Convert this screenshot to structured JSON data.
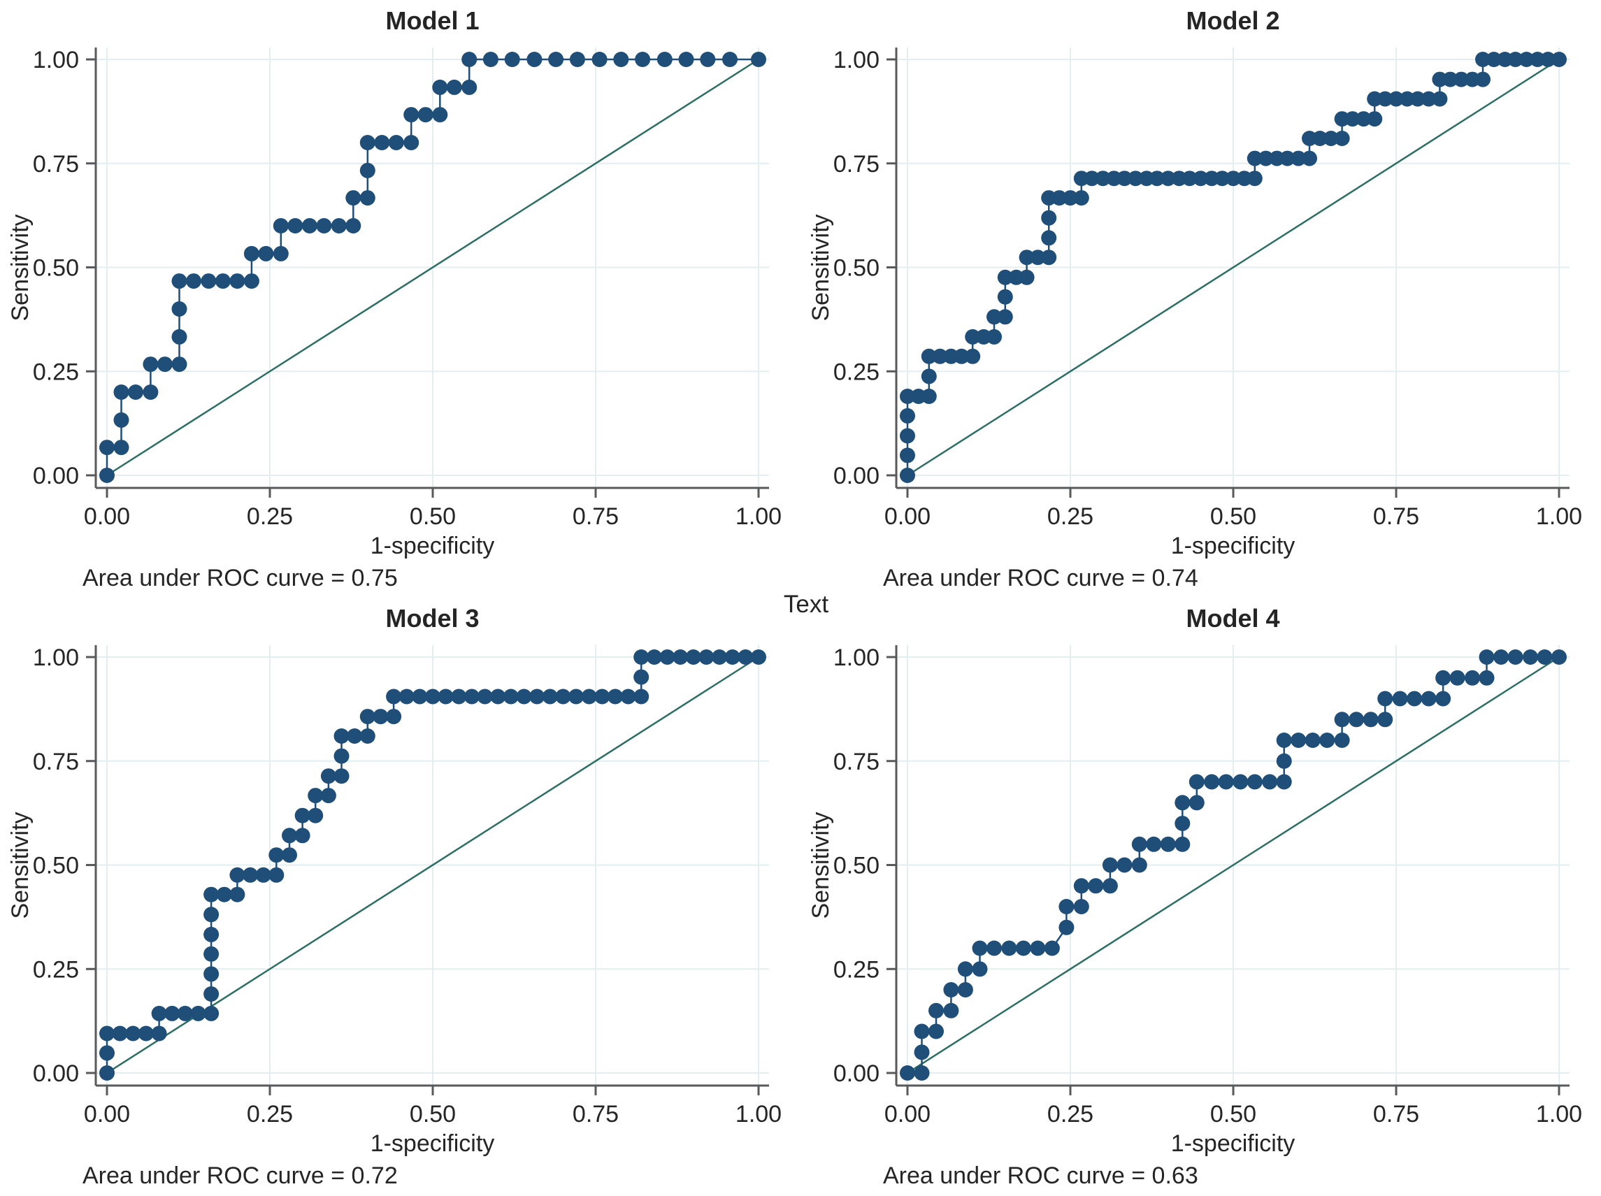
{
  "middle_label": "Text",
  "colors": {
    "curve": "#1f4e79",
    "reference_line": "#2c6e63",
    "grid": "#e3eef0",
    "axis": "#58595b",
    "text": "#252525",
    "background": "#ffffff"
  },
  "chart_data": [
    {
      "type": "line",
      "title": "Model 1",
      "xlabel": "1-specificity",
      "ylabel": "Sensitivity",
      "caption": "Area under ROC curve = 0.75",
      "auc": 0.75,
      "xlim": [
        0,
        1
      ],
      "ylim": [
        0,
        1
      ],
      "x_tick_labels": [
        "0.00",
        "0.25",
        "0.50",
        "0.75",
        "1.00"
      ],
      "y_tick_labels": [
        "0.00",
        "0.25",
        "0.50",
        "0.75",
        "1.00"
      ],
      "tick_values": [
        0,
        0.25,
        0.5,
        0.75,
        1
      ],
      "grid": true,
      "reference_line": [
        [
          0,
          0
        ],
        [
          1,
          1
        ]
      ],
      "points": [
        [
          0,
          0
        ],
        [
          0,
          0.067
        ],
        [
          0.022,
          0.067
        ],
        [
          0.022,
          0.133
        ],
        [
          0.022,
          0.2
        ],
        [
          0.044,
          0.2
        ],
        [
          0.067,
          0.2
        ],
        [
          0.067,
          0.267
        ],
        [
          0.089,
          0.267
        ],
        [
          0.111,
          0.267
        ],
        [
          0.111,
          0.333
        ],
        [
          0.111,
          0.4
        ],
        [
          0.111,
          0.467
        ],
        [
          0.133,
          0.467
        ],
        [
          0.156,
          0.467
        ],
        [
          0.178,
          0.467
        ],
        [
          0.2,
          0.467
        ],
        [
          0.222,
          0.467
        ],
        [
          0.222,
          0.533
        ],
        [
          0.244,
          0.533
        ],
        [
          0.267,
          0.533
        ],
        [
          0.267,
          0.6
        ],
        [
          0.289,
          0.6
        ],
        [
          0.311,
          0.6
        ],
        [
          0.333,
          0.6
        ],
        [
          0.356,
          0.6
        ],
        [
          0.378,
          0.6
        ],
        [
          0.378,
          0.667
        ],
        [
          0.4,
          0.667
        ],
        [
          0.4,
          0.733
        ],
        [
          0.4,
          0.8
        ],
        [
          0.422,
          0.8
        ],
        [
          0.444,
          0.8
        ],
        [
          0.467,
          0.8
        ],
        [
          0.467,
          0.867
        ],
        [
          0.489,
          0.867
        ],
        [
          0.511,
          0.867
        ],
        [
          0.511,
          0.933
        ],
        [
          0.533,
          0.933
        ],
        [
          0.556,
          0.933
        ],
        [
          0.556,
          1
        ],
        [
          0.589,
          1
        ],
        [
          0.622,
          1
        ],
        [
          0.656,
          1
        ],
        [
          0.689,
          1
        ],
        [
          0.722,
          1
        ],
        [
          0.756,
          1
        ],
        [
          0.789,
          1
        ],
        [
          0.822,
          1
        ],
        [
          0.856,
          1
        ],
        [
          0.889,
          1
        ],
        [
          0.922,
          1
        ],
        [
          0.956,
          1
        ],
        [
          1,
          1
        ]
      ]
    },
    {
      "type": "line",
      "title": "Model 2",
      "xlabel": "1-specificity",
      "ylabel": "Sensitivity",
      "caption": "Area under ROC curve = 0.74",
      "auc": 0.74,
      "xlim": [
        0,
        1
      ],
      "ylim": [
        0,
        1
      ],
      "x_tick_labels": [
        "0.00",
        "0.25",
        "0.50",
        "0.75",
        "1.00"
      ],
      "y_tick_labels": [
        "0.00",
        "0.25",
        "0.50",
        "0.75",
        "1.00"
      ],
      "tick_values": [
        0,
        0.25,
        0.5,
        0.75,
        1
      ],
      "grid": true,
      "reference_line": [
        [
          0,
          0
        ],
        [
          1,
          1
        ]
      ],
      "points": [
        [
          0,
          0
        ],
        [
          0,
          0.048
        ],
        [
          0,
          0.095
        ],
        [
          0,
          0.143
        ],
        [
          0,
          0.19
        ],
        [
          0.017,
          0.19
        ],
        [
          0.033,
          0.19
        ],
        [
          0.033,
          0.238
        ],
        [
          0.033,
          0.286
        ],
        [
          0.05,
          0.286
        ],
        [
          0.067,
          0.286
        ],
        [
          0.083,
          0.286
        ],
        [
          0.1,
          0.286
        ],
        [
          0.1,
          0.333
        ],
        [
          0.117,
          0.333
        ],
        [
          0.133,
          0.333
        ],
        [
          0.133,
          0.381
        ],
        [
          0.15,
          0.381
        ],
        [
          0.15,
          0.429
        ],
        [
          0.15,
          0.476
        ],
        [
          0.167,
          0.476
        ],
        [
          0.183,
          0.476
        ],
        [
          0.183,
          0.524
        ],
        [
          0.2,
          0.524
        ],
        [
          0.217,
          0.524
        ],
        [
          0.217,
          0.571
        ],
        [
          0.217,
          0.619
        ],
        [
          0.217,
          0.667
        ],
        [
          0.233,
          0.667
        ],
        [
          0.25,
          0.667
        ],
        [
          0.267,
          0.667
        ],
        [
          0.267,
          0.714
        ],
        [
          0.283,
          0.714
        ],
        [
          0.3,
          0.714
        ],
        [
          0.317,
          0.714
        ],
        [
          0.333,
          0.714
        ],
        [
          0.35,
          0.714
        ],
        [
          0.367,
          0.714
        ],
        [
          0.383,
          0.714
        ],
        [
          0.4,
          0.714
        ],
        [
          0.417,
          0.714
        ],
        [
          0.433,
          0.714
        ],
        [
          0.45,
          0.714
        ],
        [
          0.467,
          0.714
        ],
        [
          0.483,
          0.714
        ],
        [
          0.5,
          0.714
        ],
        [
          0.517,
          0.714
        ],
        [
          0.533,
          0.714
        ],
        [
          0.533,
          0.762
        ],
        [
          0.55,
          0.762
        ],
        [
          0.567,
          0.762
        ],
        [
          0.583,
          0.762
        ],
        [
          0.6,
          0.762
        ],
        [
          0.617,
          0.762
        ],
        [
          0.617,
          0.81
        ],
        [
          0.633,
          0.81
        ],
        [
          0.65,
          0.81
        ],
        [
          0.667,
          0.81
        ],
        [
          0.667,
          0.857
        ],
        [
          0.683,
          0.857
        ],
        [
          0.7,
          0.857
        ],
        [
          0.717,
          0.857
        ],
        [
          0.717,
          0.905
        ],
        [
          0.733,
          0.905
        ],
        [
          0.75,
          0.905
        ],
        [
          0.767,
          0.905
        ],
        [
          0.783,
          0.905
        ],
        [
          0.8,
          0.905
        ],
        [
          0.817,
          0.905
        ],
        [
          0.817,
          0.952
        ],
        [
          0.833,
          0.952
        ],
        [
          0.85,
          0.952
        ],
        [
          0.867,
          0.952
        ],
        [
          0.883,
          0.952
        ],
        [
          0.883,
          1
        ],
        [
          0.9,
          1
        ],
        [
          0.917,
          1
        ],
        [
          0.933,
          1
        ],
        [
          0.95,
          1
        ],
        [
          0.967,
          1
        ],
        [
          0.983,
          1
        ],
        [
          1,
          1
        ]
      ]
    },
    {
      "type": "line",
      "title": "Model 3",
      "xlabel": "1-specificity",
      "ylabel": "Sensitivity",
      "caption": "Area under ROC curve = 0.72",
      "auc": 0.72,
      "xlim": [
        0,
        1
      ],
      "ylim": [
        0,
        1
      ],
      "x_tick_labels": [
        "0.00",
        "0.25",
        "0.50",
        "0.75",
        "1.00"
      ],
      "y_tick_labels": [
        "0.00",
        "0.25",
        "0.50",
        "0.75",
        "1.00"
      ],
      "tick_values": [
        0,
        0.25,
        0.5,
        0.75,
        1
      ],
      "grid": true,
      "reference_line": [
        [
          0,
          0
        ],
        [
          1,
          1
        ]
      ],
      "points": [
        [
          0,
          0
        ],
        [
          0,
          0.048
        ],
        [
          0,
          0.095
        ],
        [
          0.02,
          0.095
        ],
        [
          0.04,
          0.095
        ],
        [
          0.06,
          0.095
        ],
        [
          0.08,
          0.095
        ],
        [
          0.08,
          0.143
        ],
        [
          0.1,
          0.143
        ],
        [
          0.12,
          0.143
        ],
        [
          0.14,
          0.143
        ],
        [
          0.16,
          0.143
        ],
        [
          0.16,
          0.19
        ],
        [
          0.16,
          0.238
        ],
        [
          0.16,
          0.286
        ],
        [
          0.16,
          0.333
        ],
        [
          0.16,
          0.381
        ],
        [
          0.16,
          0.429
        ],
        [
          0.18,
          0.429
        ],
        [
          0.2,
          0.429
        ],
        [
          0.2,
          0.476
        ],
        [
          0.22,
          0.476
        ],
        [
          0.24,
          0.476
        ],
        [
          0.26,
          0.476
        ],
        [
          0.26,
          0.524
        ],
        [
          0.28,
          0.524
        ],
        [
          0.28,
          0.571
        ],
        [
          0.3,
          0.571
        ],
        [
          0.3,
          0.619
        ],
        [
          0.32,
          0.619
        ],
        [
          0.32,
          0.667
        ],
        [
          0.34,
          0.667
        ],
        [
          0.34,
          0.714
        ],
        [
          0.36,
          0.714
        ],
        [
          0.36,
          0.762
        ],
        [
          0.36,
          0.81
        ],
        [
          0.38,
          0.81
        ],
        [
          0.4,
          0.81
        ],
        [
          0.4,
          0.857
        ],
        [
          0.42,
          0.857
        ],
        [
          0.44,
          0.857
        ],
        [
          0.44,
          0.905
        ],
        [
          0.46,
          0.905
        ],
        [
          0.48,
          0.905
        ],
        [
          0.5,
          0.905
        ],
        [
          0.52,
          0.905
        ],
        [
          0.54,
          0.905
        ],
        [
          0.56,
          0.905
        ],
        [
          0.58,
          0.905
        ],
        [
          0.6,
          0.905
        ],
        [
          0.62,
          0.905
        ],
        [
          0.64,
          0.905
        ],
        [
          0.66,
          0.905
        ],
        [
          0.68,
          0.905
        ],
        [
          0.7,
          0.905
        ],
        [
          0.72,
          0.905
        ],
        [
          0.74,
          0.905
        ],
        [
          0.76,
          0.905
        ],
        [
          0.78,
          0.905
        ],
        [
          0.8,
          0.905
        ],
        [
          0.82,
          0.905
        ],
        [
          0.82,
          0.952
        ],
        [
          0.82,
          1
        ],
        [
          0.84,
          1
        ],
        [
          0.86,
          1
        ],
        [
          0.88,
          1
        ],
        [
          0.9,
          1
        ],
        [
          0.92,
          1
        ],
        [
          0.94,
          1
        ],
        [
          0.96,
          1
        ],
        [
          0.98,
          1
        ],
        [
          1,
          1
        ]
      ]
    },
    {
      "type": "line",
      "title": "Model 4",
      "xlabel": "1-specificity",
      "ylabel": "Sensitivity",
      "caption": "Area under ROC curve = 0.63",
      "auc": 0.63,
      "xlim": [
        0,
        1
      ],
      "ylim": [
        0,
        1
      ],
      "x_tick_labels": [
        "0.00",
        "0.25",
        "0.50",
        "0.75",
        "1.00"
      ],
      "y_tick_labels": [
        "0.00",
        "0.25",
        "0.50",
        "0.75",
        "1.00"
      ],
      "tick_values": [
        0,
        0.25,
        0.5,
        0.75,
        1
      ],
      "grid": true,
      "reference_line": [
        [
          0,
          0
        ],
        [
          1,
          1
        ]
      ],
      "points": [
        [
          0,
          0
        ],
        [
          0.022,
          0
        ],
        [
          0.022,
          0.05
        ],
        [
          0.022,
          0.1
        ],
        [
          0.044,
          0.1
        ],
        [
          0.044,
          0.15
        ],
        [
          0.067,
          0.15
        ],
        [
          0.067,
          0.2
        ],
        [
          0.089,
          0.2
        ],
        [
          0.089,
          0.25
        ],
        [
          0.111,
          0.25
        ],
        [
          0.111,
          0.3
        ],
        [
          0.133,
          0.3
        ],
        [
          0.156,
          0.3
        ],
        [
          0.178,
          0.3
        ],
        [
          0.2,
          0.3
        ],
        [
          0.222,
          0.3
        ],
        [
          0.244,
          0.35
        ],
        [
          0.244,
          0.4
        ],
        [
          0.267,
          0.4
        ],
        [
          0.267,
          0.45
        ],
        [
          0.289,
          0.45
        ],
        [
          0.311,
          0.45
        ],
        [
          0.311,
          0.5
        ],
        [
          0.333,
          0.5
        ],
        [
          0.356,
          0.5
        ],
        [
          0.356,
          0.55
        ],
        [
          0.378,
          0.55
        ],
        [
          0.4,
          0.55
        ],
        [
          0.422,
          0.55
        ],
        [
          0.422,
          0.6
        ],
        [
          0.422,
          0.65
        ],
        [
          0.444,
          0.65
        ],
        [
          0.444,
          0.7
        ],
        [
          0.467,
          0.7
        ],
        [
          0.489,
          0.7
        ],
        [
          0.511,
          0.7
        ],
        [
          0.533,
          0.7
        ],
        [
          0.556,
          0.7
        ],
        [
          0.578,
          0.7
        ],
        [
          0.578,
          0.75
        ],
        [
          0.578,
          0.8
        ],
        [
          0.6,
          0.8
        ],
        [
          0.622,
          0.8
        ],
        [
          0.644,
          0.8
        ],
        [
          0.667,
          0.8
        ],
        [
          0.667,
          0.85
        ],
        [
          0.689,
          0.85
        ],
        [
          0.711,
          0.85
        ],
        [
          0.733,
          0.85
        ],
        [
          0.733,
          0.9
        ],
        [
          0.756,
          0.9
        ],
        [
          0.778,
          0.9
        ],
        [
          0.8,
          0.9
        ],
        [
          0.822,
          0.9
        ],
        [
          0.822,
          0.95
        ],
        [
          0.844,
          0.95
        ],
        [
          0.867,
          0.95
        ],
        [
          0.889,
          0.95
        ],
        [
          0.889,
          1
        ],
        [
          0.911,
          1
        ],
        [
          0.933,
          1
        ],
        [
          0.956,
          1
        ],
        [
          0.978,
          1
        ],
        [
          1,
          1
        ]
      ]
    }
  ]
}
